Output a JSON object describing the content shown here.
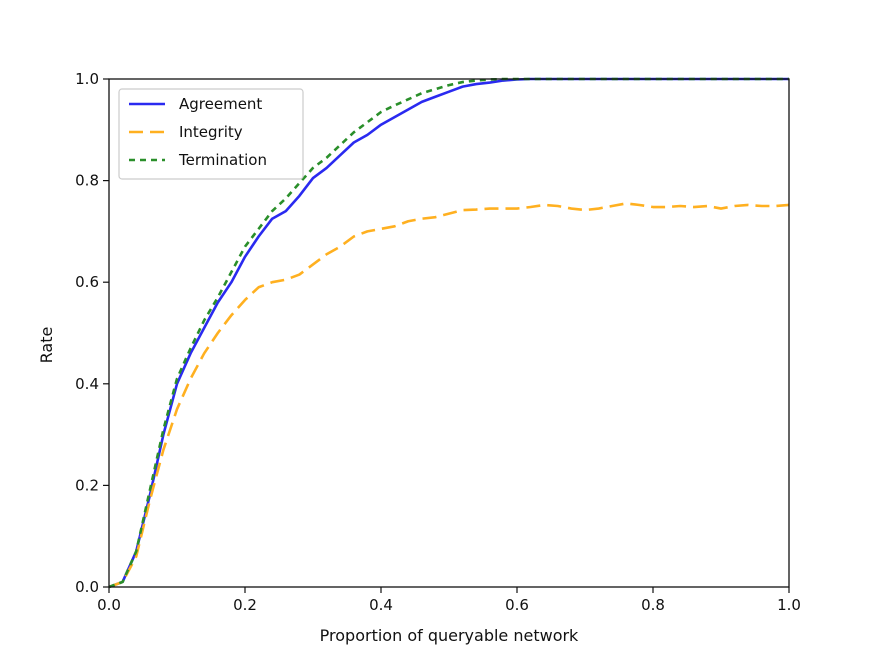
{
  "chart_data": {
    "type": "line",
    "title": "",
    "xlabel": "Proportion of queryable network",
    "ylabel": "Rate",
    "xlim": [
      0.0,
      1.0
    ],
    "ylim": [
      0.0,
      1.0
    ],
    "xticks": [
      "0.0",
      "0.2",
      "0.4",
      "0.6",
      "0.8",
      "1.0"
    ],
    "yticks": [
      "0.0",
      "0.2",
      "0.4",
      "0.6",
      "0.8",
      "1.0"
    ],
    "grid": false,
    "legend_position": "upper-left",
    "series": [
      {
        "name": "Agreement",
        "color": "#2a2af0",
        "style": "solid",
        "points": [
          [
            0.0,
            0.0
          ],
          [
            0.02,
            0.01
          ],
          [
            0.04,
            0.07
          ],
          [
            0.06,
            0.18
          ],
          [
            0.08,
            0.3
          ],
          [
            0.1,
            0.4
          ],
          [
            0.12,
            0.46
          ],
          [
            0.14,
            0.51
          ],
          [
            0.16,
            0.56
          ],
          [
            0.18,
            0.6
          ],
          [
            0.2,
            0.65
          ],
          [
            0.22,
            0.69
          ],
          [
            0.24,
            0.725
          ],
          [
            0.26,
            0.74
          ],
          [
            0.28,
            0.77
          ],
          [
            0.3,
            0.805
          ],
          [
            0.32,
            0.825
          ],
          [
            0.34,
            0.85
          ],
          [
            0.36,
            0.875
          ],
          [
            0.38,
            0.89
          ],
          [
            0.4,
            0.91
          ],
          [
            0.42,
            0.925
          ],
          [
            0.44,
            0.94
          ],
          [
            0.46,
            0.955
          ],
          [
            0.48,
            0.965
          ],
          [
            0.5,
            0.975
          ],
          [
            0.52,
            0.985
          ],
          [
            0.54,
            0.99
          ],
          [
            0.56,
            0.993
          ],
          [
            0.58,
            0.997
          ],
          [
            0.6,
            0.999
          ],
          [
            0.62,
            1.0
          ],
          [
            0.65,
            1.0
          ],
          [
            0.7,
            1.0
          ],
          [
            0.8,
            1.0
          ],
          [
            0.9,
            1.0
          ],
          [
            1.0,
            1.0
          ]
        ]
      },
      {
        "name": "Integrity",
        "color": "#ffb020",
        "style": "dashed",
        "points": [
          [
            0.0,
            0.0
          ],
          [
            0.02,
            0.01
          ],
          [
            0.04,
            0.06
          ],
          [
            0.06,
            0.17
          ],
          [
            0.08,
            0.27
          ],
          [
            0.1,
            0.35
          ],
          [
            0.12,
            0.41
          ],
          [
            0.14,
            0.46
          ],
          [
            0.16,
            0.5
          ],
          [
            0.18,
            0.535
          ],
          [
            0.2,
            0.565
          ],
          [
            0.22,
            0.59
          ],
          [
            0.24,
            0.6
          ],
          [
            0.26,
            0.605
          ],
          [
            0.28,
            0.615
          ],
          [
            0.3,
            0.635
          ],
          [
            0.32,
            0.655
          ],
          [
            0.34,
            0.67
          ],
          [
            0.36,
            0.69
          ],
          [
            0.38,
            0.7
          ],
          [
            0.4,
            0.705
          ],
          [
            0.42,
            0.71
          ],
          [
            0.44,
            0.72
          ],
          [
            0.46,
            0.725
          ],
          [
            0.48,
            0.728
          ],
          [
            0.5,
            0.735
          ],
          [
            0.52,
            0.742
          ],
          [
            0.54,
            0.743
          ],
          [
            0.56,
            0.745
          ],
          [
            0.58,
            0.745
          ],
          [
            0.6,
            0.745
          ],
          [
            0.62,
            0.748
          ],
          [
            0.64,
            0.752
          ],
          [
            0.66,
            0.75
          ],
          [
            0.68,
            0.745
          ],
          [
            0.7,
            0.742
          ],
          [
            0.72,
            0.745
          ],
          [
            0.74,
            0.75
          ],
          [
            0.76,
            0.755
          ],
          [
            0.78,
            0.752
          ],
          [
            0.8,
            0.748
          ],
          [
            0.82,
            0.748
          ],
          [
            0.84,
            0.75
          ],
          [
            0.86,
            0.748
          ],
          [
            0.88,
            0.75
          ],
          [
            0.9,
            0.745
          ],
          [
            0.92,
            0.75
          ],
          [
            0.94,
            0.752
          ],
          [
            0.96,
            0.75
          ],
          [
            0.98,
            0.75
          ],
          [
            1.0,
            0.752
          ]
        ]
      },
      {
        "name": "Termination",
        "color": "#2a8f2a",
        "style": "dotted",
        "points": [
          [
            0.0,
            0.0
          ],
          [
            0.02,
            0.01
          ],
          [
            0.04,
            0.07
          ],
          [
            0.06,
            0.19
          ],
          [
            0.08,
            0.31
          ],
          [
            0.1,
            0.41
          ],
          [
            0.12,
            0.47
          ],
          [
            0.14,
            0.525
          ],
          [
            0.16,
            0.57
          ],
          [
            0.18,
            0.62
          ],
          [
            0.2,
            0.67
          ],
          [
            0.22,
            0.705
          ],
          [
            0.24,
            0.74
          ],
          [
            0.26,
            0.765
          ],
          [
            0.28,
            0.795
          ],
          [
            0.3,
            0.825
          ],
          [
            0.32,
            0.845
          ],
          [
            0.34,
            0.87
          ],
          [
            0.36,
            0.895
          ],
          [
            0.38,
            0.915
          ],
          [
            0.4,
            0.935
          ],
          [
            0.42,
            0.948
          ],
          [
            0.44,
            0.96
          ],
          [
            0.46,
            0.972
          ],
          [
            0.48,
            0.98
          ],
          [
            0.5,
            0.988
          ],
          [
            0.52,
            0.994
          ],
          [
            0.54,
            0.997
          ],
          [
            0.56,
            0.999
          ],
          [
            0.58,
            1.0
          ],
          [
            0.6,
            1.0
          ],
          [
            0.65,
            1.0
          ],
          [
            0.7,
            1.0
          ],
          [
            0.8,
            1.0
          ],
          [
            0.9,
            1.0
          ],
          [
            1.0,
            1.0
          ]
        ]
      }
    ]
  }
}
